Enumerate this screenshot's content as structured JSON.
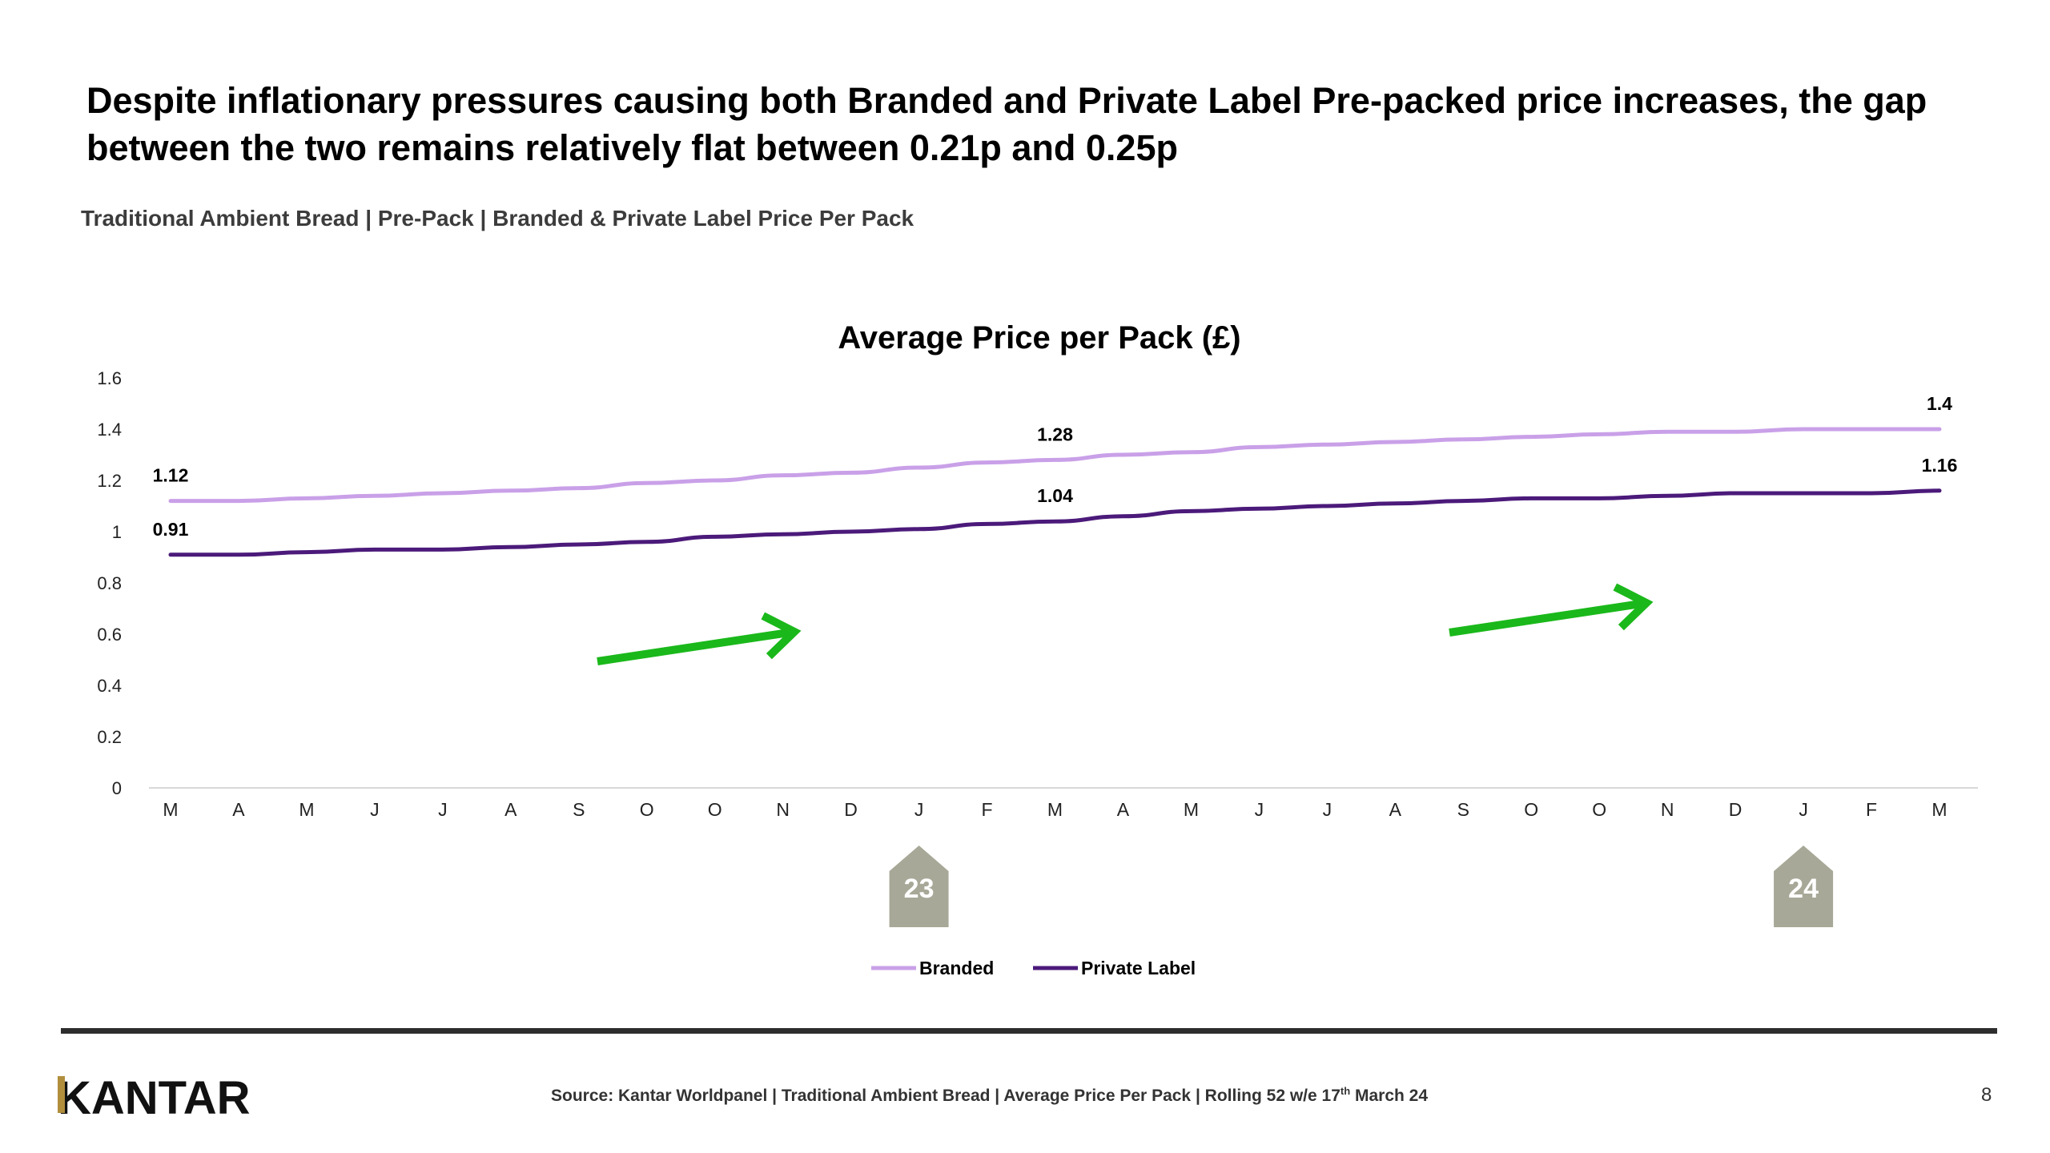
{
  "headline": "Despite inflationary pressures causing both Branded and Private Label Pre-packed price increases, the gap between the two remains relatively flat between 0.21p and 0.25p",
  "subtitle": "Traditional Ambient Bread | Pre-Pack | Branded & Private Label Price Per Pack",
  "chart_data": {
    "type": "line",
    "title": "Average Price per Pack (£)",
    "xlabel": "",
    "ylabel": "",
    "ylim": [
      0,
      1.6
    ],
    "yticks": [
      "0",
      "0.2",
      "0.4",
      "0.6",
      "0.8",
      "1",
      "1.2",
      "1.4",
      "1.6"
    ],
    "categories": [
      "M",
      "A",
      "M",
      "J",
      "J",
      "A",
      "S",
      "O",
      "O",
      "N",
      "D",
      "J",
      "F",
      "M",
      "A",
      "M",
      "J",
      "J",
      "A",
      "S",
      "O",
      "O",
      "N",
      "D",
      "J",
      "F",
      "M"
    ],
    "series": [
      {
        "name": "Branded",
        "color": "#c9a0e8",
        "values": [
          1.12,
          1.12,
          1.13,
          1.14,
          1.15,
          1.16,
          1.17,
          1.19,
          1.2,
          1.22,
          1.23,
          1.25,
          1.27,
          1.28,
          1.3,
          1.31,
          1.33,
          1.34,
          1.35,
          1.36,
          1.37,
          1.38,
          1.39,
          1.39,
          1.4,
          1.4,
          1.4
        ],
        "data_labels": [
          {
            "index": 0,
            "text": "1.12"
          },
          {
            "index": 13,
            "text": "1.28"
          },
          {
            "index": 26,
            "text": "1.4"
          }
        ]
      },
      {
        "name": "Private Label",
        "color": "#4b1a7a",
        "values": [
          0.91,
          0.91,
          0.92,
          0.93,
          0.93,
          0.94,
          0.95,
          0.96,
          0.98,
          0.99,
          1.0,
          1.01,
          1.03,
          1.04,
          1.06,
          1.08,
          1.09,
          1.1,
          1.11,
          1.12,
          1.13,
          1.13,
          1.14,
          1.15,
          1.15,
          1.15,
          1.16
        ],
        "data_labels": [
          {
            "index": 0,
            "text": "0.91"
          },
          {
            "index": 13,
            "text": "1.04"
          },
          {
            "index": 26,
            "text": "1.16"
          }
        ]
      }
    ],
    "year_markers": [
      {
        "index": 11,
        "label": "23"
      },
      {
        "index": 24,
        "label": "24"
      }
    ],
    "arrows_color": "#1ab81a",
    "marker_color": "#a8a898",
    "grid": false,
    "legend_position": "bottom"
  },
  "footer": {
    "logo": "KANTAR",
    "source_prefix": "Source: Kantar Worldpanel | Traditional Ambient Bread | Average Price Per Pack | Rolling 52 w/e 17",
    "source_sup": "th",
    "source_suffix": " March 24",
    "page_number": "8"
  }
}
